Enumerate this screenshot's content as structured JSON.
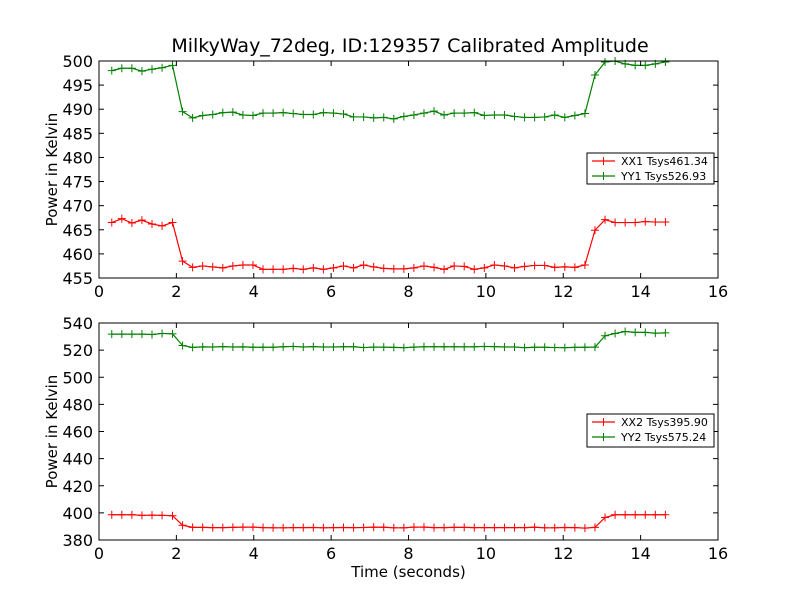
{
  "title": "MilkyWay_72deg, ID:129357 Calibrated Amplitude",
  "colors": {
    "red": "#ff0000",
    "green": "#008000"
  },
  "chart_data": [
    {
      "type": "line",
      "xlabel": "",
      "ylabel": "Power in Kelvin",
      "xlim": [
        0,
        16
      ],
      "ylim": [
        455,
        500
      ],
      "xticks": [
        0,
        2,
        4,
        6,
        8,
        10,
        12,
        14,
        16
      ],
      "yticks": [
        455,
        460,
        465,
        470,
        475,
        480,
        485,
        490,
        495,
        500
      ],
      "legend_position": "right",
      "series": [
        {
          "name": "XX1 Tsys461.34",
          "color": "#ff0000",
          "x": [
            0.33,
            0.59,
            0.85,
            1.11,
            1.37,
            1.63,
            1.9,
            2.16,
            2.42,
            2.68,
            2.94,
            3.2,
            3.46,
            3.72,
            3.98,
            4.24,
            4.5,
            4.76,
            5.02,
            5.28,
            5.54,
            5.8,
            6.06,
            6.32,
            6.58,
            6.84,
            7.1,
            7.36,
            7.62,
            7.88,
            8.14,
            8.4,
            8.66,
            8.92,
            9.18,
            9.44,
            9.7,
            9.96,
            10.22,
            10.48,
            10.74,
            11.0,
            11.26,
            11.52,
            11.78,
            12.04,
            12.3,
            12.56,
            12.82,
            13.08,
            13.34,
            13.6,
            13.86,
            14.12,
            14.38,
            14.64
          ],
          "y": [
            466.5,
            467.3,
            466.4,
            467.0,
            466.2,
            465.8,
            466.5,
            458.5,
            457.2,
            457.5,
            457.3,
            457.1,
            457.5,
            457.7,
            457.7,
            456.8,
            456.8,
            456.8,
            457.0,
            456.8,
            457.1,
            456.8,
            457.1,
            457.5,
            457.1,
            457.7,
            457.3,
            457.0,
            456.9,
            456.9,
            457.1,
            457.5,
            457.2,
            456.8,
            457.5,
            457.4,
            456.8,
            457.1,
            457.7,
            457.5,
            457.1,
            457.4,
            457.6,
            457.6,
            457.2,
            457.3,
            457.2,
            457.7,
            464.9,
            467.1,
            466.5,
            466.5,
            466.5,
            466.7,
            466.6,
            466.6
          ]
        },
        {
          "name": "YY1 Tsys526.93",
          "color": "#008000",
          "x": [
            0.33,
            0.59,
            0.85,
            1.11,
            1.37,
            1.63,
            1.9,
            2.16,
            2.42,
            2.68,
            2.94,
            3.2,
            3.46,
            3.72,
            3.98,
            4.24,
            4.5,
            4.76,
            5.02,
            5.28,
            5.54,
            5.8,
            6.06,
            6.32,
            6.58,
            6.84,
            7.1,
            7.36,
            7.62,
            7.88,
            8.14,
            8.4,
            8.66,
            8.92,
            9.18,
            9.44,
            9.7,
            9.96,
            10.22,
            10.48,
            10.74,
            11.0,
            11.26,
            11.52,
            11.78,
            12.04,
            12.3,
            12.56,
            12.82,
            13.08,
            13.34,
            13.6,
            13.86,
            14.12,
            14.38,
            14.64
          ],
          "y": [
            498.0,
            498.5,
            498.5,
            497.9,
            498.3,
            498.6,
            499.1,
            489.5,
            488.2,
            488.7,
            488.9,
            489.3,
            489.4,
            488.8,
            488.7,
            489.2,
            489.2,
            489.3,
            489.1,
            488.9,
            488.9,
            489.3,
            489.2,
            489.0,
            488.4,
            488.4,
            488.2,
            488.3,
            488.0,
            488.5,
            488.8,
            489.2,
            489.6,
            488.8,
            489.2,
            489.2,
            489.3,
            488.7,
            488.8,
            488.8,
            488.5,
            488.3,
            488.3,
            488.4,
            488.8,
            488.3,
            488.7,
            489.1,
            497.1,
            499.8,
            500.0,
            499.4,
            499.1,
            499.1,
            499.4,
            499.8
          ]
        }
      ]
    },
    {
      "type": "line",
      "xlabel": "Time (seconds)",
      "ylabel": "Power in Kelvin",
      "xlim": [
        0,
        16
      ],
      "ylim": [
        380,
        540
      ],
      "xticks": [
        0,
        2,
        4,
        6,
        8,
        10,
        12,
        14,
        16
      ],
      "yticks": [
        380,
        400,
        420,
        440,
        460,
        480,
        500,
        520,
        540
      ],
      "legend_position": "right",
      "series": [
        {
          "name": "XX2 Tsys395.90",
          "color": "#ff0000",
          "x": [
            0.33,
            0.59,
            0.85,
            1.11,
            1.37,
            1.63,
            1.9,
            2.16,
            2.42,
            2.68,
            2.94,
            3.2,
            3.46,
            3.72,
            3.98,
            4.24,
            4.5,
            4.76,
            5.02,
            5.28,
            5.54,
            5.8,
            6.06,
            6.32,
            6.58,
            6.84,
            7.1,
            7.36,
            7.62,
            7.88,
            8.14,
            8.4,
            8.66,
            8.92,
            9.18,
            9.44,
            9.7,
            9.96,
            10.22,
            10.48,
            10.74,
            11.0,
            11.26,
            11.52,
            11.78,
            12.04,
            12.3,
            12.56,
            12.82,
            13.08,
            13.34,
            13.6,
            13.86,
            14.12,
            14.38,
            14.64
          ],
          "y": [
            398.6,
            398.6,
            398.6,
            398.2,
            398.3,
            398.2,
            397.9,
            390.9,
            389.3,
            389.3,
            389.1,
            389.1,
            389.3,
            389.5,
            389.5,
            389.1,
            389.0,
            389.0,
            389.1,
            389.1,
            389.2,
            389.0,
            389.1,
            389.2,
            389.1,
            389.2,
            389.5,
            389.4,
            389.0,
            389.0,
            389.5,
            389.5,
            389.1,
            389.1,
            389.3,
            389.3,
            389.1,
            389.1,
            389.1,
            389.1,
            389.1,
            389.1,
            389.4,
            389.0,
            389.0,
            389.2,
            389.1,
            388.8,
            389.3,
            396.6,
            398.6,
            398.6,
            398.6,
            398.6,
            398.6,
            398.6
          ]
        },
        {
          "name": "YY2 Tsys575.24",
          "color": "#008000",
          "x": [
            0.33,
            0.59,
            0.85,
            1.11,
            1.37,
            1.63,
            1.9,
            2.16,
            2.42,
            2.68,
            2.94,
            3.2,
            3.46,
            3.72,
            3.98,
            4.24,
            4.5,
            4.76,
            5.02,
            5.28,
            5.54,
            5.8,
            6.06,
            6.32,
            6.58,
            6.84,
            7.1,
            7.36,
            7.62,
            7.88,
            8.14,
            8.4,
            8.66,
            8.92,
            9.18,
            9.44,
            9.7,
            9.96,
            10.22,
            10.48,
            10.74,
            11.0,
            11.26,
            11.52,
            11.78,
            12.04,
            12.3,
            12.56,
            12.82,
            13.08,
            13.34,
            13.6,
            13.86,
            14.12,
            14.38,
            14.64
          ],
          "y": [
            531.8,
            531.8,
            531.8,
            531.8,
            531.5,
            532.3,
            532.0,
            523.4,
            522.0,
            522.4,
            522.3,
            522.6,
            522.3,
            522.4,
            522.1,
            522.1,
            522.1,
            522.5,
            522.7,
            522.3,
            522.6,
            522.3,
            522.3,
            522.5,
            522.5,
            521.9,
            522.2,
            522.2,
            522.0,
            521.8,
            522.2,
            522.5,
            522.5,
            522.5,
            522.5,
            522.4,
            522.5,
            522.7,
            522.6,
            522.3,
            522.3,
            521.8,
            522.1,
            522.1,
            521.9,
            521.8,
            522.0,
            522.1,
            522.2,
            530.6,
            532.3,
            533.7,
            533.1,
            533.1,
            532.5,
            532.7
          ]
        }
      ]
    }
  ]
}
